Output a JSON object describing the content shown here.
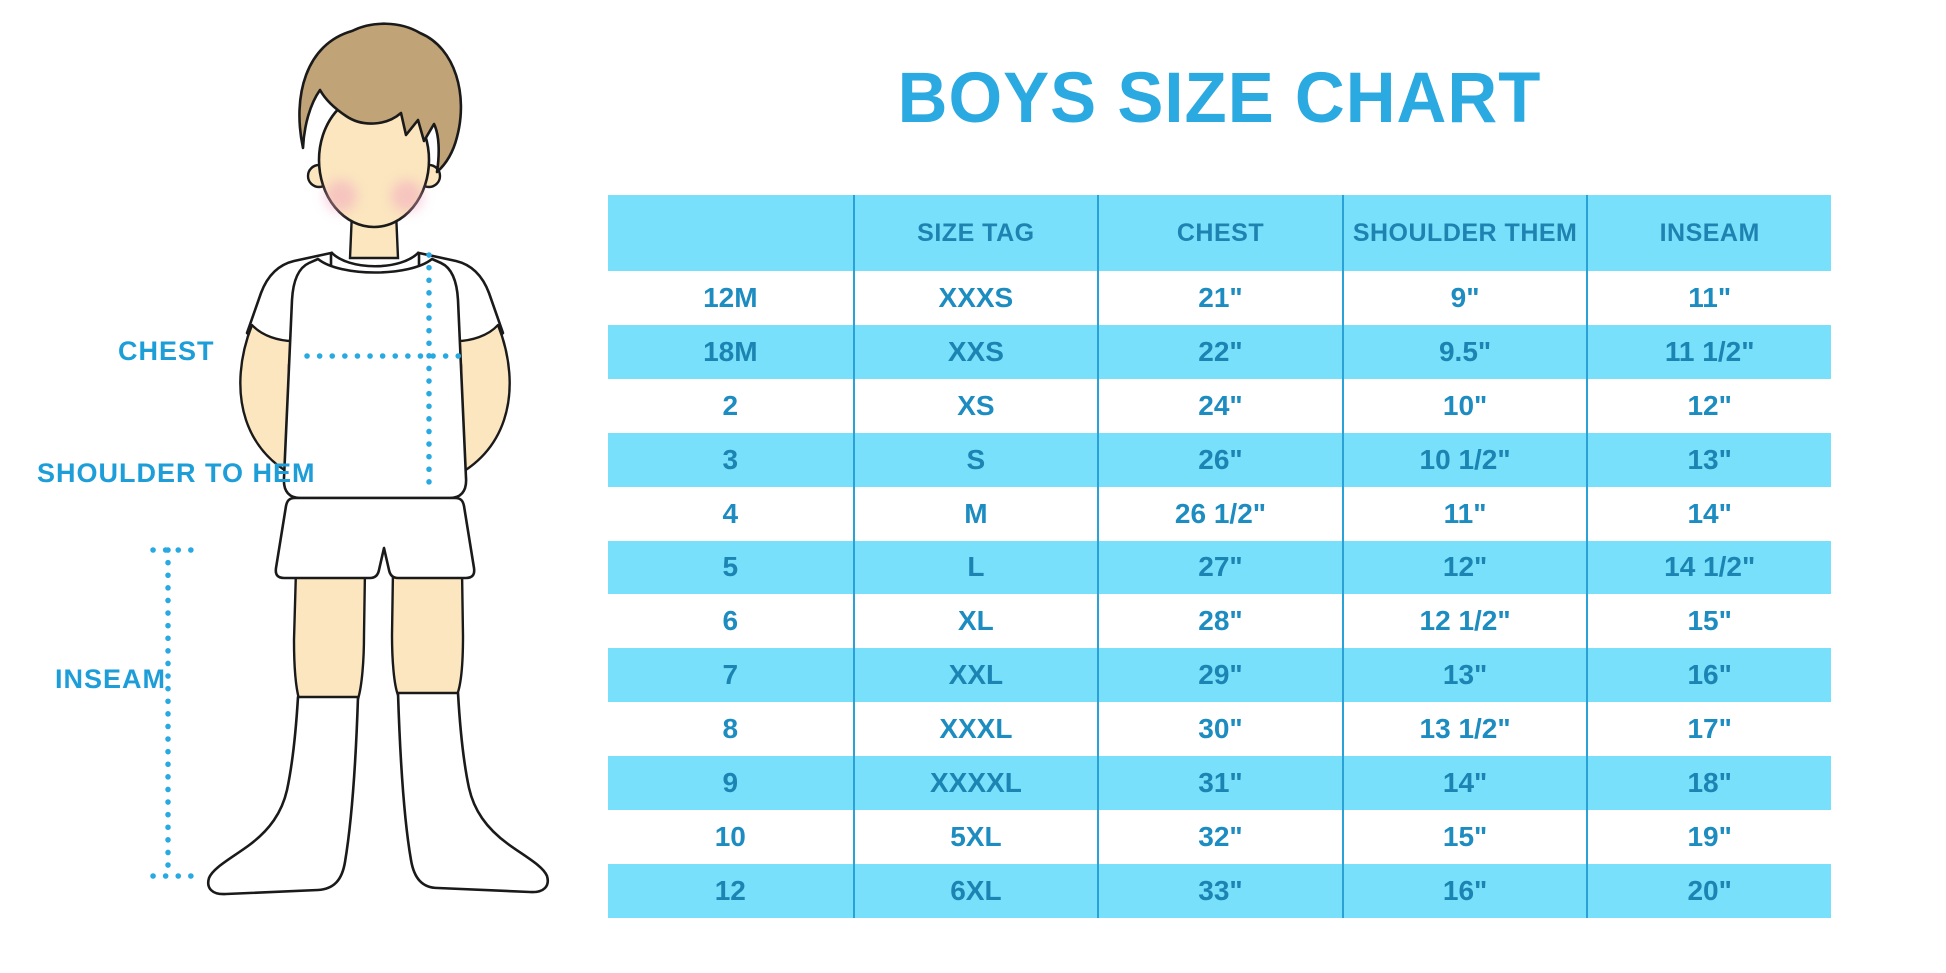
{
  "title": "BOYS SIZE CHART",
  "figure": {
    "description": "cartoon boy in white t-shirt, shorts and knee socks with dotted measurement guides",
    "labels": {
      "chest": "CHEST",
      "shoulder_to_hem": "SHOULDER TO HEM",
      "inseam": "INSEAM"
    }
  },
  "chart_data": {
    "type": "table",
    "title": "BOYS SIZE CHART",
    "columns": [
      "",
      "SIZE TAG",
      "CHEST",
      "SHOULDER THEM",
      "INSEAM"
    ],
    "rows": [
      [
        "12M",
        "XXXS",
        "21\"",
        "9\"",
        "11\""
      ],
      [
        "18M",
        "XXS",
        "22\"",
        "9.5\"",
        "11 1/2\""
      ],
      [
        "2",
        "XS",
        "24\"",
        "10\"",
        "12\""
      ],
      [
        "3",
        "S",
        "26\"",
        "10 1/2\"",
        "13\""
      ],
      [
        "4",
        "M",
        "26 1/2\"",
        "11\"",
        "14\""
      ],
      [
        "5",
        "L",
        "27\"",
        "12\"",
        "14 1/2\""
      ],
      [
        "6",
        "XL",
        "28\"",
        "12 1/2\"",
        "15\""
      ],
      [
        "7",
        "XXL",
        "29\"",
        "13\"",
        "16\""
      ],
      [
        "8",
        "XXXL",
        "30\"",
        "13 1/2\"",
        "17\""
      ],
      [
        "9",
        "XXXXL",
        "31\"",
        "14\"",
        "18\""
      ],
      [
        "10",
        "5XL",
        "32\"",
        "15\"",
        "19\""
      ],
      [
        "12",
        "6XL",
        "33\"",
        "16\"",
        "20\""
      ]
    ]
  },
  "colors": {
    "accent_blue": "#2BA9E1",
    "row_fill": "#79E0FB",
    "header_text": "#1F83B1",
    "cell_text": "#1D8CC0",
    "dotted_line": "#29A9E1",
    "skin": "#FBE6BF",
    "hair": "#C0A377"
  }
}
